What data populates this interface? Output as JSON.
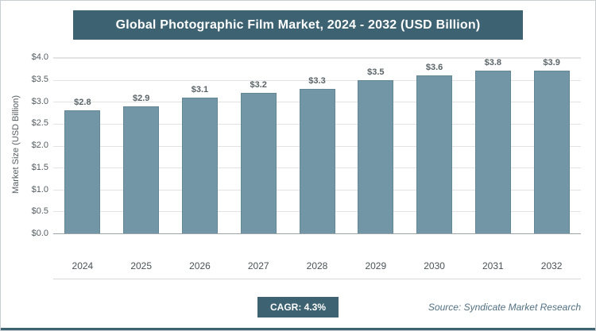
{
  "title": "Global Photographic Film Market, 2024 - 2032 (USD Billion)",
  "chart_data": {
    "type": "bar",
    "title": "Global Photographic Film Market, 2024 - 2032 (USD Billion)",
    "categories": [
      "2024",
      "2025",
      "2026",
      "2027",
      "2028",
      "2029",
      "2030",
      "2031",
      "2032"
    ],
    "values": [
      2.8,
      2.9,
      3.1,
      3.2,
      3.3,
      3.5,
      3.6,
      3.8,
      3.9
    ],
    "value_labels": [
      "$2.8",
      "$2.9",
      "$3.1",
      "$3.2",
      "$3.3",
      "$3.5",
      "$3.6",
      "$3.8",
      "$3.9"
    ],
    "xlabel": "",
    "ylabel": "Market Size (USD Billion)",
    "ylim": [
      0,
      4.0
    ],
    "yticks": [
      "$0.0",
      "$0.5",
      "$1.0",
      "$1.5",
      "$2.0",
      "$2.5",
      "$3.0",
      "$3.5",
      "$4.0"
    ],
    "grid": true,
    "legend": "none",
    "bar_color": "#7396a7"
  },
  "footer": {
    "cagr_label": "CAGR: 4.3%",
    "source": "Source: Syndicate Market Research"
  },
  "colors": {
    "banner_bg": "#3d6272",
    "bar_fill": "#7396a7",
    "bar_border": "#628796",
    "gridline": "#e3e3e3",
    "accent_rule": "#3d6272"
  }
}
